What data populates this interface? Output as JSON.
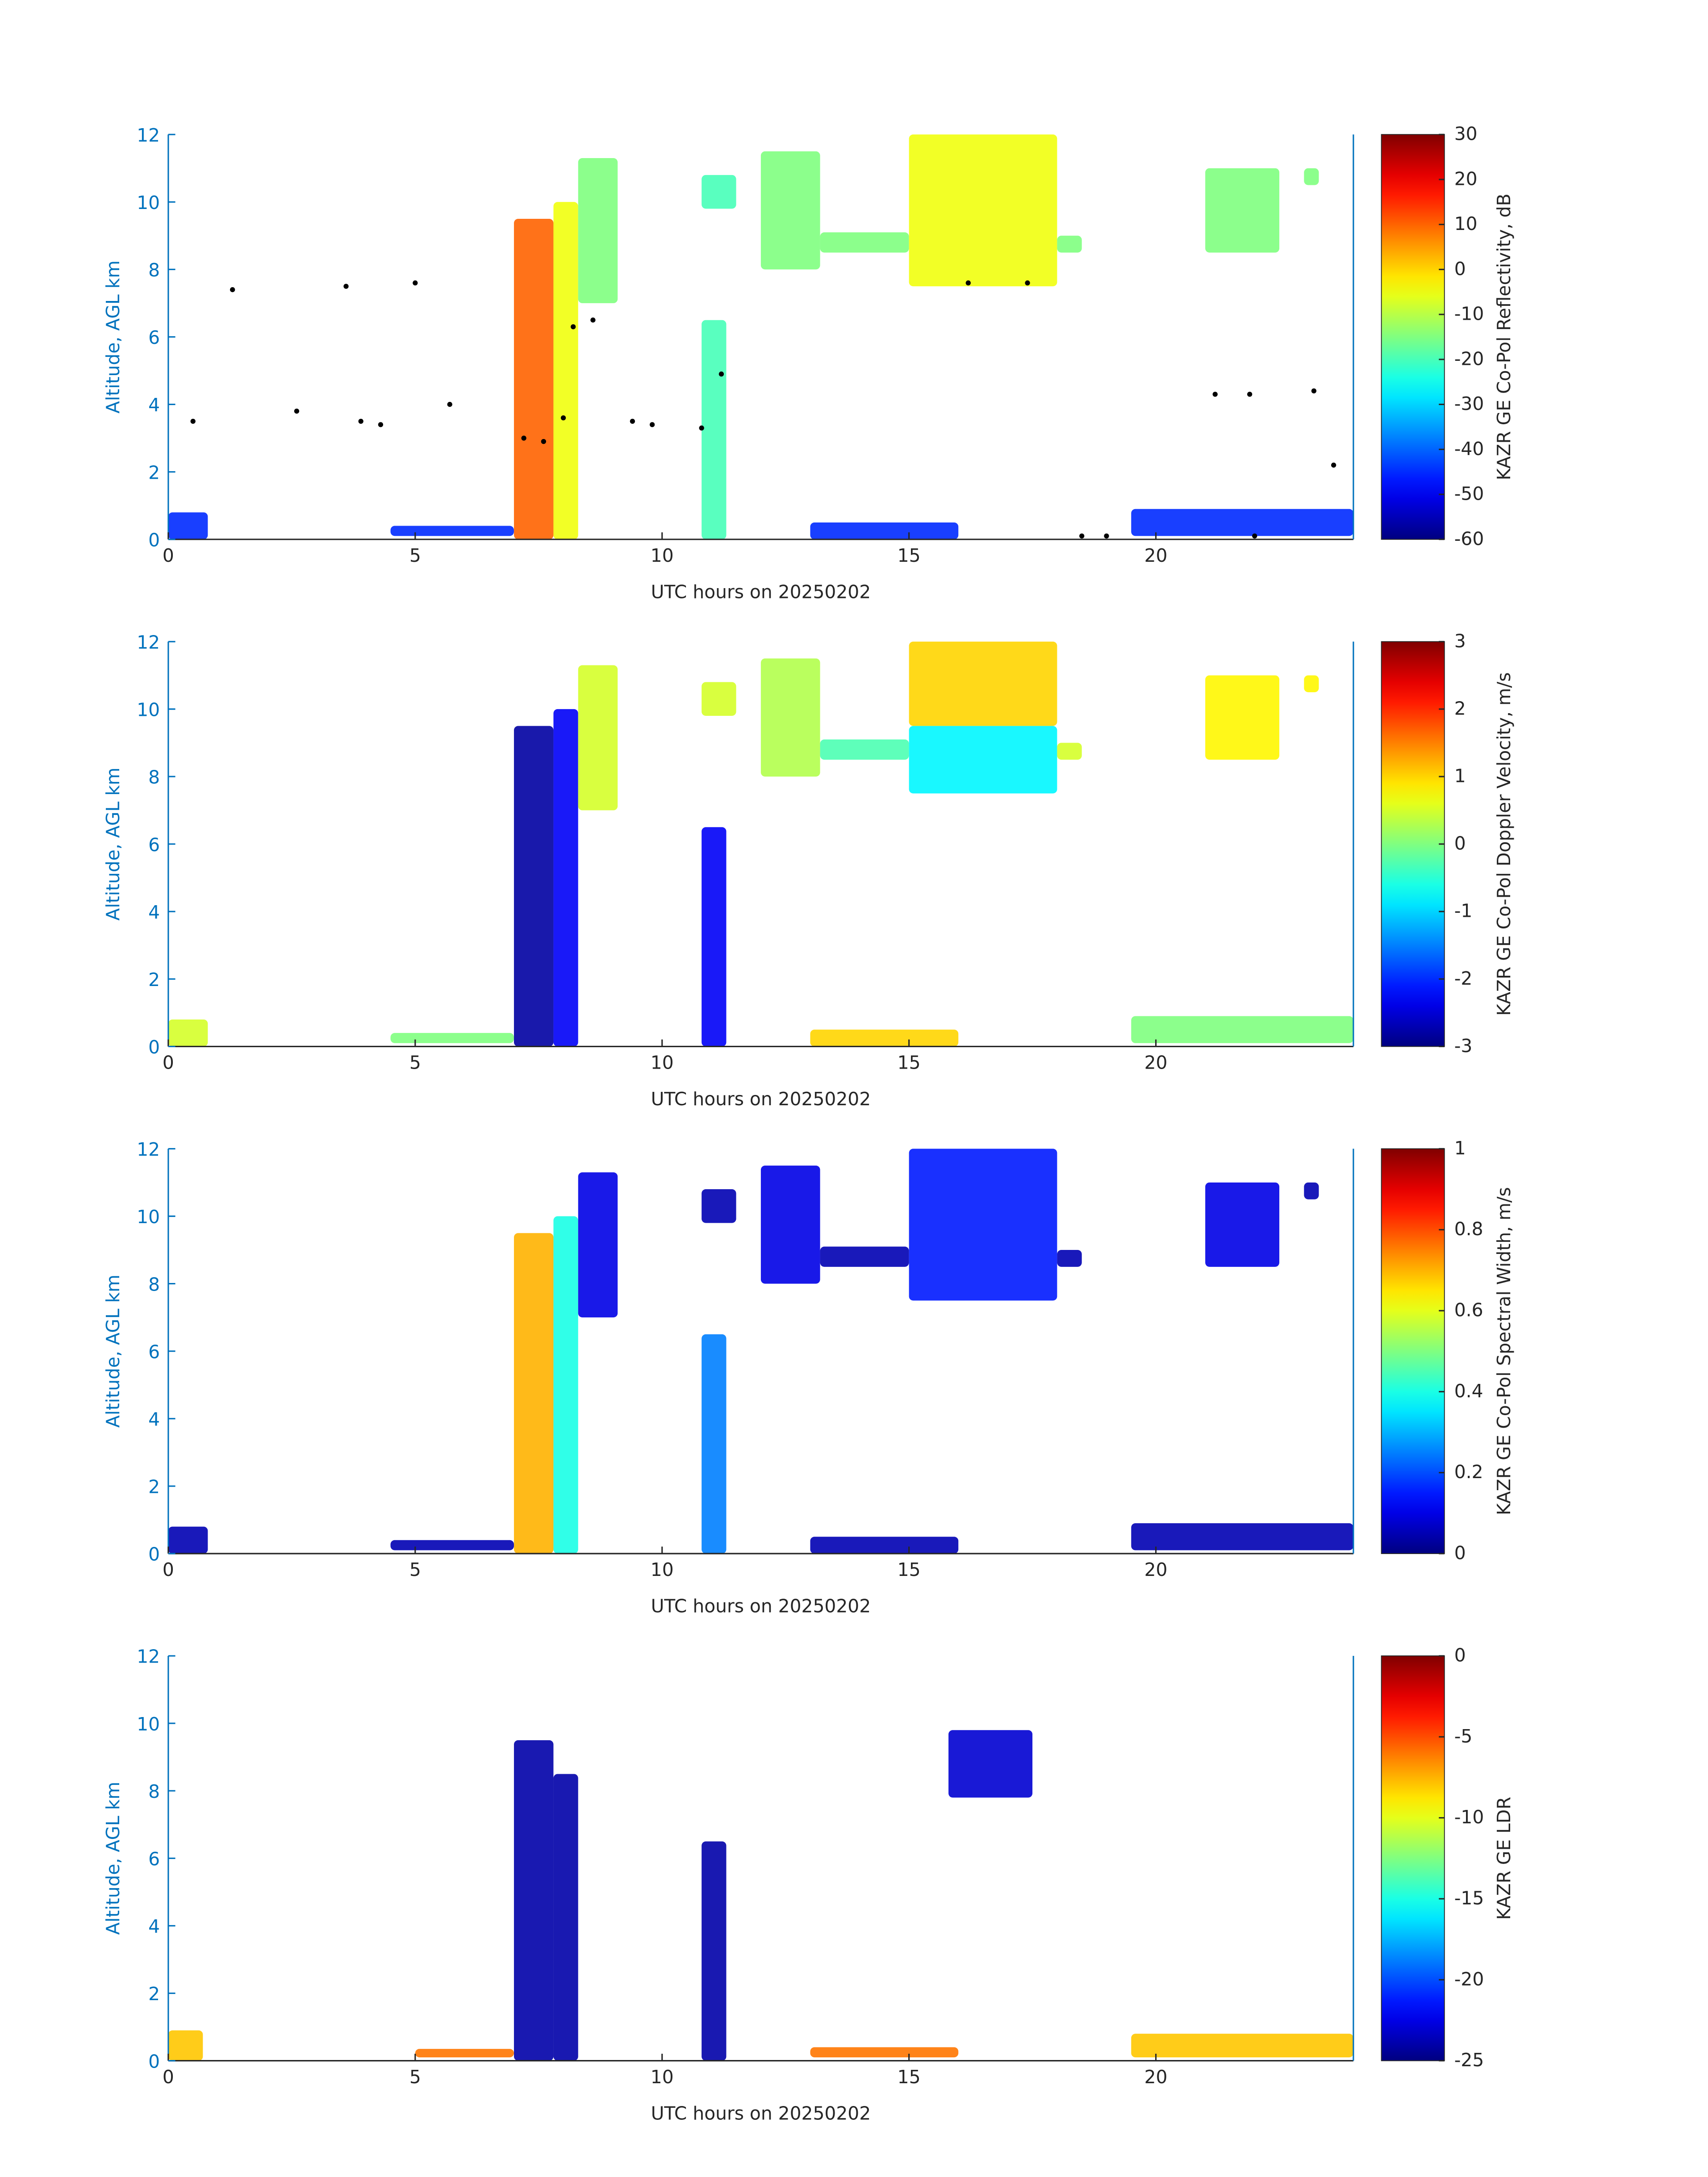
{
  "chart_data": [
    {
      "type": "heatmap",
      "xlabel": "UTC hours on 20250202",
      "ylabel": "Altitude, AGL km",
      "colorbar_label": "KAZR GE Co-Pol Reflectivity, dB",
      "xlim": [
        0,
        24
      ],
      "xticks": [
        0,
        5,
        10,
        15,
        20
      ],
      "ylim": [
        0,
        12
      ],
      "yticks": [
        0,
        2,
        4,
        6,
        8,
        10,
        12
      ],
      "clim": [
        -60,
        30
      ],
      "cticks": [
        -60,
        -50,
        -40,
        -30,
        -20,
        -10,
        0,
        10,
        20,
        30
      ],
      "colormap": "jet",
      "patches": [
        {
          "x": [
            0,
            0.8
          ],
          "y": [
            0,
            0.8
          ],
          "value": -45
        },
        {
          "x": [
            4.5,
            7
          ],
          "y": [
            0.1,
            0.4
          ],
          "value": -45
        },
        {
          "x": [
            7,
            7.8
          ],
          "y": [
            0,
            9.5
          ],
          "value": 10
        },
        {
          "x": [
            7.8,
            8.3
          ],
          "y": [
            0,
            10
          ],
          "value": -5
        },
        {
          "x": [
            8.3,
            9.1
          ],
          "y": [
            7,
            11.3
          ],
          "value": -15
        },
        {
          "x": [
            10.8,
            11.3
          ],
          "y": [
            0,
            6.5
          ],
          "value": -20
        },
        {
          "x": [
            10.8,
            11.5
          ],
          "y": [
            9.8,
            10.8
          ],
          "value": -20
        },
        {
          "x": [
            12,
            13.2
          ],
          "y": [
            8,
            11.5
          ],
          "value": -15
        },
        {
          "x": [
            13.2,
            15
          ],
          "y": [
            8.5,
            9.1
          ],
          "value": -15
        },
        {
          "x": [
            15,
            18
          ],
          "y": [
            7.5,
            12
          ],
          "value": -5
        },
        {
          "x": [
            18,
            18.5
          ],
          "y": [
            8.5,
            9
          ],
          "value": -15
        },
        {
          "x": [
            13,
            16
          ],
          "y": [
            0,
            0.5
          ],
          "value": -45
        },
        {
          "x": [
            19.5,
            24
          ],
          "y": [
            0.1,
            0.9
          ],
          "value": -45
        },
        {
          "x": [
            21,
            22.5
          ],
          "y": [
            8.5,
            11
          ],
          "value": -15
        },
        {
          "x": [
            23,
            23.3
          ],
          "y": [
            10.5,
            11
          ],
          "value": -15
        }
      ],
      "points": {
        "color": "#000000",
        "x": [
          0.5,
          1.3,
          2.6,
          3.6,
          3.9,
          4.3,
          5,
          5.7,
          7.2,
          7.6,
          8.0,
          8.2,
          8.6,
          9.4,
          9.8,
          10.8,
          11.2,
          16.2,
          17.4,
          18.5,
          19,
          21.2,
          21.9,
          22,
          23.2,
          23.6
        ],
        "y": [
          3.5,
          7.4,
          3.8,
          7.5,
          3.5,
          3.4,
          7.6,
          4.0,
          3.0,
          2.9,
          3.6,
          6.3,
          6.5,
          3.5,
          3.4,
          3.3,
          4.9,
          7.6,
          7.6,
          0.1,
          0.1,
          4.3,
          4.3,
          0.1,
          4.4,
          2.2
        ]
      }
    },
    {
      "type": "heatmap",
      "xlabel": "UTC hours on 20250202",
      "ylabel": "Altitude, AGL km",
      "colorbar_label": "KAZR GE Co-Pol Doppler Velocity, m/s",
      "xlim": [
        0,
        24
      ],
      "xticks": [
        0,
        5,
        10,
        15,
        20
      ],
      "ylim": [
        0,
        12
      ],
      "yticks": [
        0,
        2,
        4,
        6,
        8,
        10,
        12
      ],
      "clim": [
        -3,
        3
      ],
      "cticks": [
        -3,
        -2,
        -1,
        0,
        1,
        2,
        3
      ],
      "colormap": "jet",
      "patches": [
        {
          "x": [
            0,
            0.8
          ],
          "y": [
            0,
            0.8
          ],
          "value": 0.5
        },
        {
          "x": [
            4.5,
            7
          ],
          "y": [
            0.1,
            0.4
          ],
          "value": 0
        },
        {
          "x": [
            7,
            7.8
          ],
          "y": [
            0,
            9.5
          ],
          "value": -2.8
        },
        {
          "x": [
            7.8,
            8.3
          ],
          "y": [
            0,
            10
          ],
          "value": -2.3
        },
        {
          "x": [
            8.3,
            9.1
          ],
          "y": [
            7,
            11.3
          ],
          "value": 0.5
        },
        {
          "x": [
            10.8,
            11.3
          ],
          "y": [
            0,
            6.5
          ],
          "value": -2.3
        },
        {
          "x": [
            10.8,
            11.5
          ],
          "y": [
            9.8,
            10.8
          ],
          "value": 0.5
        },
        {
          "x": [
            12,
            13.2
          ],
          "y": [
            8,
            11.5
          ],
          "value": 0.3
        },
        {
          "x": [
            13.2,
            15
          ],
          "y": [
            8.5,
            9.1
          ],
          "value": -0.3
        },
        {
          "x": [
            15,
            18
          ],
          "y": [
            9.5,
            12
          ],
          "value": 1
        },
        {
          "x": [
            15,
            18
          ],
          "y": [
            7.5,
            9.5
          ],
          "value": -0.8
        },
        {
          "x": [
            18,
            18.5
          ],
          "y": [
            8.5,
            9
          ],
          "value": 0.5
        },
        {
          "x": [
            13,
            16
          ],
          "y": [
            0,
            0.5
          ],
          "value": 1
        },
        {
          "x": [
            19.5,
            24
          ],
          "y": [
            0.1,
            0.9
          ],
          "value": 0
        },
        {
          "x": [
            21,
            22.5
          ],
          "y": [
            8.5,
            11
          ],
          "value": 0.8
        },
        {
          "x": [
            23,
            23.3
          ],
          "y": [
            10.5,
            11
          ],
          "value": 0.8
        }
      ]
    },
    {
      "type": "heatmap",
      "xlabel": "UTC hours on 20250202",
      "ylabel": "Altitude, AGL km",
      "colorbar_label": "KAZR GE Co-Pol Spectral Width, m/s",
      "xlim": [
        0,
        24
      ],
      "xticks": [
        0,
        5,
        10,
        15,
        20
      ],
      "ylim": [
        0,
        12
      ],
      "yticks": [
        0,
        2,
        4,
        6,
        8,
        10,
        12
      ],
      "clim": [
        0,
        1
      ],
      "cticks": [
        0,
        0.2,
        0.4,
        0.6,
        0.8,
        1
      ],
      "colormap": "jet",
      "patches": [
        {
          "x": [
            0,
            0.8
          ],
          "y": [
            0,
            0.8
          ],
          "value": 0.05
        },
        {
          "x": [
            4.5,
            7
          ],
          "y": [
            0.1,
            0.4
          ],
          "value": 0.05
        },
        {
          "x": [
            7,
            7.8
          ],
          "y": [
            0,
            9.5
          ],
          "value": 0.7
        },
        {
          "x": [
            7.8,
            8.3
          ],
          "y": [
            0,
            10
          ],
          "value": 0.4
        },
        {
          "x": [
            8.3,
            9.1
          ],
          "y": [
            7,
            11.3
          ],
          "value": 0.1
        },
        {
          "x": [
            10.8,
            11.3
          ],
          "y": [
            0,
            6.5
          ],
          "value": 0.25
        },
        {
          "x": [
            10.8,
            11.5
          ],
          "y": [
            9.8,
            10.8
          ],
          "value": 0.05
        },
        {
          "x": [
            12,
            13.2
          ],
          "y": [
            8,
            11.5
          ],
          "value": 0.1
        },
        {
          "x": [
            13.2,
            15
          ],
          "y": [
            8.5,
            9.1
          ],
          "value": 0.05
        },
        {
          "x": [
            15,
            18
          ],
          "y": [
            7.5,
            12
          ],
          "value": 0.15
        },
        {
          "x": [
            18,
            18.5
          ],
          "y": [
            8.5,
            9
          ],
          "value": 0.05
        },
        {
          "x": [
            13,
            16
          ],
          "y": [
            0,
            0.5
          ],
          "value": 0.05
        },
        {
          "x": [
            19.5,
            24
          ],
          "y": [
            0.1,
            0.9
          ],
          "value": 0.05
        },
        {
          "x": [
            21,
            22.5
          ],
          "y": [
            8.5,
            11
          ],
          "value": 0.1
        },
        {
          "x": [
            23,
            23.3
          ],
          "y": [
            10.5,
            11
          ],
          "value": 0.05
        }
      ]
    },
    {
      "type": "heatmap",
      "xlabel": "UTC hours on 20250202",
      "ylabel": "Altitude, AGL km",
      "colorbar_label": "KAZR GE LDR",
      "xlim": [
        0,
        24
      ],
      "xticks": [
        0,
        5,
        10,
        15,
        20
      ],
      "ylim": [
        0,
        12
      ],
      "yticks": [
        0,
        2,
        4,
        6,
        8,
        10,
        12
      ],
      "clim": [
        -25,
        0
      ],
      "cticks": [
        -25,
        -20,
        -15,
        -10,
        -5,
        0
      ],
      "colormap": "jet",
      "patches": [
        {
          "x": [
            0,
            0.7
          ],
          "y": [
            0,
            0.9
          ],
          "value": -8
        },
        {
          "x": [
            5,
            7
          ],
          "y": [
            0.1,
            0.35
          ],
          "value": -6
        },
        {
          "x": [
            7,
            7.8
          ],
          "y": [
            0,
            9.5
          ],
          "value": -24
        },
        {
          "x": [
            7.8,
            8.3
          ],
          "y": [
            0,
            8.5
          ],
          "value": -24
        },
        {
          "x": [
            10.8,
            11.3
          ],
          "y": [
            0,
            6.5
          ],
          "value": -24
        },
        {
          "x": [
            15.8,
            17.5
          ],
          "y": [
            7.8,
            9.8
          ],
          "value": -23
        },
        {
          "x": [
            13,
            16
          ],
          "y": [
            0.1,
            0.4
          ],
          "value": -6
        },
        {
          "x": [
            19.5,
            24
          ],
          "y": [
            0.1,
            0.8
          ],
          "value": -8
        }
      ]
    }
  ]
}
